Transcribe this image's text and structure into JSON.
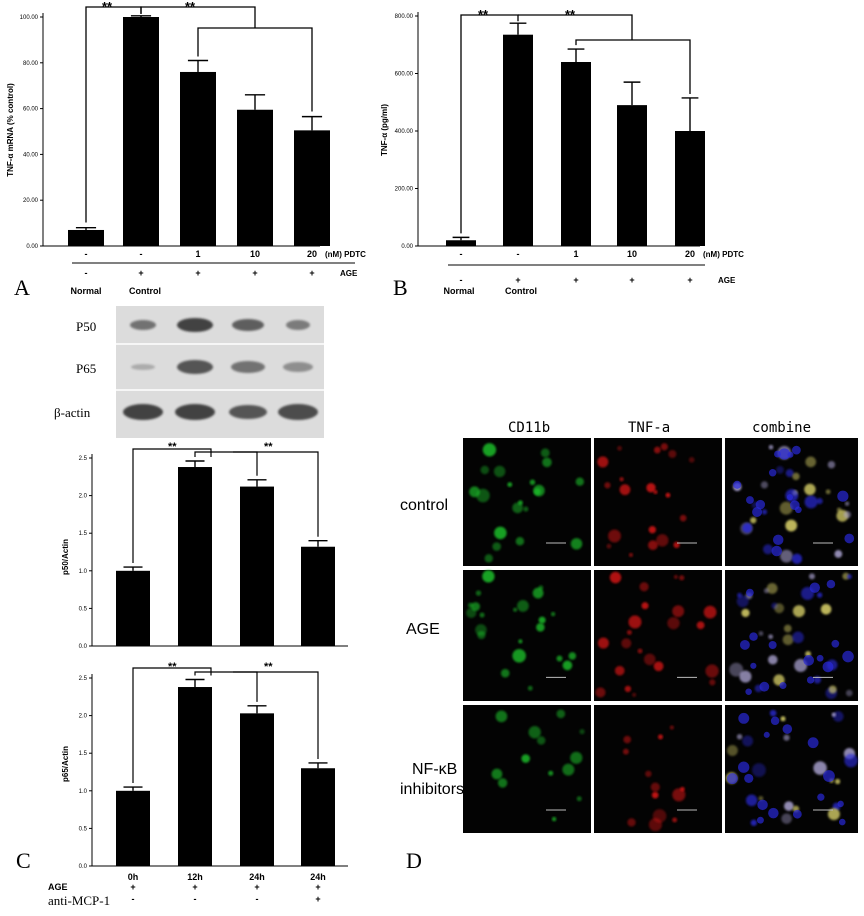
{
  "panels": {
    "A": {
      "letter": "A"
    },
    "B": {
      "letter": "B"
    },
    "C": {
      "letter": "C"
    },
    "D": {
      "letter": "D"
    }
  },
  "chart_data": [
    {
      "id": "A",
      "type": "bar",
      "ylabel": "TNF-α mRNA (% control)",
      "ylim": [
        0,
        100
      ],
      "yticks": [
        "0.00",
        "20.00",
        "40.00",
        "60.00",
        "80.00",
        "100.00"
      ],
      "categories": [
        "Normal",
        "Control",
        "1",
        "10",
        "20"
      ],
      "values": [
        7,
        100,
        76,
        59.5,
        50.5
      ],
      "errors": [
        1,
        0.5,
        5,
        6.5,
        6
      ],
      "row1": [
        "-",
        "-",
        "1",
        "10",
        "20"
      ],
      "row1_label": "(nM) PDTC",
      "row2": [
        "-",
        "+",
        "+",
        "+",
        "+"
      ],
      "row2_label": "AGE",
      "group_labels": [
        "Normal",
        "Control"
      ],
      "significance": [
        "**",
        "**"
      ]
    },
    {
      "id": "B",
      "type": "bar",
      "ylabel": "TNF-α (pg/ml)",
      "ylim": [
        0,
        800
      ],
      "yticks": [
        "0.00",
        "200.00",
        "400.00",
        "600.00",
        "800.00"
      ],
      "categories": [
        "Normal",
        "Control",
        "1",
        "10",
        "20"
      ],
      "values": [
        20,
        735,
        640,
        490,
        400
      ],
      "errors": [
        10,
        40,
        45,
        80,
        115
      ],
      "row1": [
        "-",
        "-",
        "1",
        "10",
        "20"
      ],
      "row1_label": "(nM) PDTC",
      "row2": [
        "-",
        "+",
        "+",
        "+",
        "+"
      ],
      "row2_label": "AGE",
      "group_labels": [
        "Normal",
        "Control"
      ],
      "significance": [
        "**",
        "**"
      ]
    },
    {
      "id": "C1",
      "type": "bar",
      "ylabel": "p50/Actin",
      "ylim": [
        0,
        2.5
      ],
      "yticks": [
        "0.0",
        "0.5",
        "1.0",
        "1.5",
        "2.0",
        "2.5"
      ],
      "values": [
        1.0,
        2.38,
        2.12,
        1.32
      ],
      "errors": [
        0.05,
        0.08,
        0.09,
        0.08
      ],
      "significance": [
        "**",
        "**"
      ]
    },
    {
      "id": "C2",
      "type": "bar",
      "ylabel": "p65/Actin",
      "ylim": [
        0,
        2.5
      ],
      "yticks": [
        "0.0",
        "0.5",
        "1.0",
        "1.5",
        "2.0",
        "2.5"
      ],
      "categories": [
        "0h",
        "12h",
        "24h",
        "24h"
      ],
      "values": [
        1.0,
        2.38,
        2.03,
        1.3
      ],
      "errors": [
        0.05,
        0.1,
        0.1,
        0.07
      ],
      "row1_label": "AGE",
      "row1": [
        "+",
        "+",
        "+",
        "+"
      ],
      "row2_label": "anti-MCP-1",
      "row2": [
        "-",
        "-",
        "-",
        "+"
      ],
      "significance": [
        "**",
        "**"
      ]
    }
  ],
  "blot": {
    "rows": [
      "P50",
      "P65",
      "β-actin"
    ]
  },
  "micro": {
    "columns": [
      "CD11b",
      "TNF-a",
      "combine"
    ],
    "rows": [
      {
        "label": "control"
      },
      {
        "label": "AGE"
      },
      {
        "label": "NF-κB\ninhibitors"
      }
    ],
    "colors": {
      "green": "#1fbf2a",
      "red": "#e01818",
      "blue": "#2a2ad8",
      "yellow": "#e8e070"
    }
  }
}
